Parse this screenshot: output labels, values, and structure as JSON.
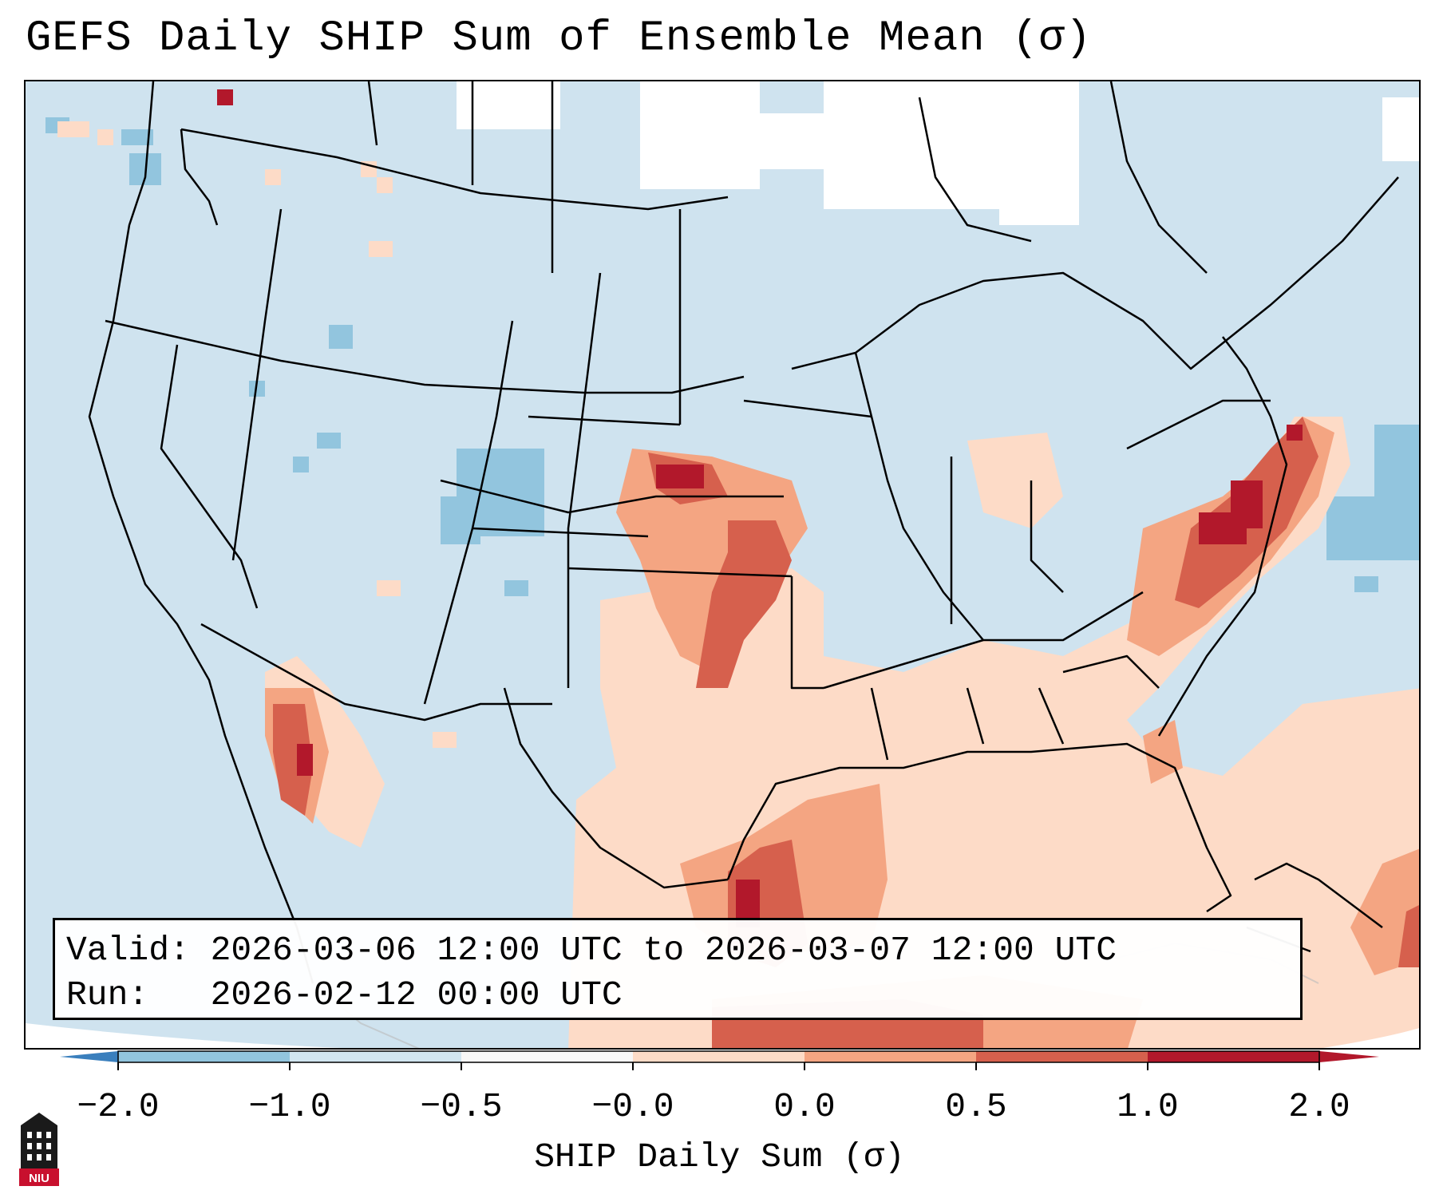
{
  "title": "GEFS Daily SHIP Sum of Ensemble Mean (σ)",
  "info": {
    "valid_line": "Valid: 2026-03-06 12:00 UTC to 2026-03-07 12:00 UTC",
    "run_line": "Run:   2026-02-12 00:00 UTC"
  },
  "colorbar": {
    "label": "SHIP Daily Sum (σ)",
    "ticks": [
      "−2.0",
      "−1.0",
      "−0.5",
      "−0.0",
      "0.0",
      "0.5",
      "1.0",
      "2.0"
    ],
    "colors": [
      "#4a90c6",
      "#92c5de",
      "#d1e5f0",
      "#f7f7f7",
      "#fddbc7",
      "#f4a582",
      "#d6604d",
      "#b2182b"
    ]
  },
  "logo": {
    "text": "NIU",
    "icon": "university-tower-icon"
  },
  "map_colors": {
    "background": "#cfe3ef",
    "neg_light": "#d1e5f0",
    "neg_mid": "#92c5de",
    "white": "#ffffff",
    "pos_light": "#fddbc7",
    "pos_mid": "#f4a582",
    "pos_strong": "#d6604d",
    "pos_max": "#b2182b"
  }
}
